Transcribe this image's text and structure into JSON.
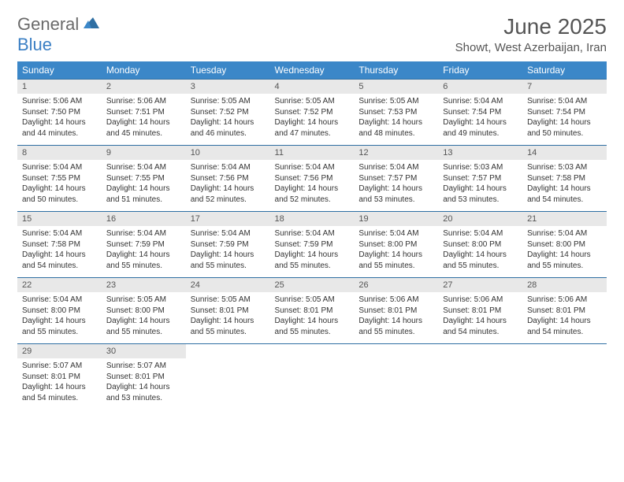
{
  "brand": {
    "part1": "General",
    "part2": "Blue"
  },
  "title": "June 2025",
  "location": "Showt, West Azerbaijan, Iran",
  "colors": {
    "header_bg": "#3b87c8",
    "header_text": "#ffffff",
    "daynum_bg": "#e8e8e8",
    "rule": "#2f6fa3",
    "brand_gray": "#6a6a6a",
    "brand_blue": "#3b7fc4"
  },
  "weekdays": [
    "Sunday",
    "Monday",
    "Tuesday",
    "Wednesday",
    "Thursday",
    "Friday",
    "Saturday"
  ],
  "weeks": [
    [
      {
        "n": "1",
        "sr": "Sunrise: 5:06 AM",
        "ss": "Sunset: 7:50 PM",
        "d1": "Daylight: 14 hours",
        "d2": "and 44 minutes."
      },
      {
        "n": "2",
        "sr": "Sunrise: 5:06 AM",
        "ss": "Sunset: 7:51 PM",
        "d1": "Daylight: 14 hours",
        "d2": "and 45 minutes."
      },
      {
        "n": "3",
        "sr": "Sunrise: 5:05 AM",
        "ss": "Sunset: 7:52 PM",
        "d1": "Daylight: 14 hours",
        "d2": "and 46 minutes."
      },
      {
        "n": "4",
        "sr": "Sunrise: 5:05 AM",
        "ss": "Sunset: 7:52 PM",
        "d1": "Daylight: 14 hours",
        "d2": "and 47 minutes."
      },
      {
        "n": "5",
        "sr": "Sunrise: 5:05 AM",
        "ss": "Sunset: 7:53 PM",
        "d1": "Daylight: 14 hours",
        "d2": "and 48 minutes."
      },
      {
        "n": "6",
        "sr": "Sunrise: 5:04 AM",
        "ss": "Sunset: 7:54 PM",
        "d1": "Daylight: 14 hours",
        "d2": "and 49 minutes."
      },
      {
        "n": "7",
        "sr": "Sunrise: 5:04 AM",
        "ss": "Sunset: 7:54 PM",
        "d1": "Daylight: 14 hours",
        "d2": "and 50 minutes."
      }
    ],
    [
      {
        "n": "8",
        "sr": "Sunrise: 5:04 AM",
        "ss": "Sunset: 7:55 PM",
        "d1": "Daylight: 14 hours",
        "d2": "and 50 minutes."
      },
      {
        "n": "9",
        "sr": "Sunrise: 5:04 AM",
        "ss": "Sunset: 7:55 PM",
        "d1": "Daylight: 14 hours",
        "d2": "and 51 minutes."
      },
      {
        "n": "10",
        "sr": "Sunrise: 5:04 AM",
        "ss": "Sunset: 7:56 PM",
        "d1": "Daylight: 14 hours",
        "d2": "and 52 minutes."
      },
      {
        "n": "11",
        "sr": "Sunrise: 5:04 AM",
        "ss": "Sunset: 7:56 PM",
        "d1": "Daylight: 14 hours",
        "d2": "and 52 minutes."
      },
      {
        "n": "12",
        "sr": "Sunrise: 5:04 AM",
        "ss": "Sunset: 7:57 PM",
        "d1": "Daylight: 14 hours",
        "d2": "and 53 minutes."
      },
      {
        "n": "13",
        "sr": "Sunrise: 5:03 AM",
        "ss": "Sunset: 7:57 PM",
        "d1": "Daylight: 14 hours",
        "d2": "and 53 minutes."
      },
      {
        "n": "14",
        "sr": "Sunrise: 5:03 AM",
        "ss": "Sunset: 7:58 PM",
        "d1": "Daylight: 14 hours",
        "d2": "and 54 minutes."
      }
    ],
    [
      {
        "n": "15",
        "sr": "Sunrise: 5:04 AM",
        "ss": "Sunset: 7:58 PM",
        "d1": "Daylight: 14 hours",
        "d2": "and 54 minutes."
      },
      {
        "n": "16",
        "sr": "Sunrise: 5:04 AM",
        "ss": "Sunset: 7:59 PM",
        "d1": "Daylight: 14 hours",
        "d2": "and 55 minutes."
      },
      {
        "n": "17",
        "sr": "Sunrise: 5:04 AM",
        "ss": "Sunset: 7:59 PM",
        "d1": "Daylight: 14 hours",
        "d2": "and 55 minutes."
      },
      {
        "n": "18",
        "sr": "Sunrise: 5:04 AM",
        "ss": "Sunset: 7:59 PM",
        "d1": "Daylight: 14 hours",
        "d2": "and 55 minutes."
      },
      {
        "n": "19",
        "sr": "Sunrise: 5:04 AM",
        "ss": "Sunset: 8:00 PM",
        "d1": "Daylight: 14 hours",
        "d2": "and 55 minutes."
      },
      {
        "n": "20",
        "sr": "Sunrise: 5:04 AM",
        "ss": "Sunset: 8:00 PM",
        "d1": "Daylight: 14 hours",
        "d2": "and 55 minutes."
      },
      {
        "n": "21",
        "sr": "Sunrise: 5:04 AM",
        "ss": "Sunset: 8:00 PM",
        "d1": "Daylight: 14 hours",
        "d2": "and 55 minutes."
      }
    ],
    [
      {
        "n": "22",
        "sr": "Sunrise: 5:04 AM",
        "ss": "Sunset: 8:00 PM",
        "d1": "Daylight: 14 hours",
        "d2": "and 55 minutes."
      },
      {
        "n": "23",
        "sr": "Sunrise: 5:05 AM",
        "ss": "Sunset: 8:00 PM",
        "d1": "Daylight: 14 hours",
        "d2": "and 55 minutes."
      },
      {
        "n": "24",
        "sr": "Sunrise: 5:05 AM",
        "ss": "Sunset: 8:01 PM",
        "d1": "Daylight: 14 hours",
        "d2": "and 55 minutes."
      },
      {
        "n": "25",
        "sr": "Sunrise: 5:05 AM",
        "ss": "Sunset: 8:01 PM",
        "d1": "Daylight: 14 hours",
        "d2": "and 55 minutes."
      },
      {
        "n": "26",
        "sr": "Sunrise: 5:06 AM",
        "ss": "Sunset: 8:01 PM",
        "d1": "Daylight: 14 hours",
        "d2": "and 55 minutes."
      },
      {
        "n": "27",
        "sr": "Sunrise: 5:06 AM",
        "ss": "Sunset: 8:01 PM",
        "d1": "Daylight: 14 hours",
        "d2": "and 54 minutes."
      },
      {
        "n": "28",
        "sr": "Sunrise: 5:06 AM",
        "ss": "Sunset: 8:01 PM",
        "d1": "Daylight: 14 hours",
        "d2": "and 54 minutes."
      }
    ],
    [
      {
        "n": "29",
        "sr": "Sunrise: 5:07 AM",
        "ss": "Sunset: 8:01 PM",
        "d1": "Daylight: 14 hours",
        "d2": "and 54 minutes."
      },
      {
        "n": "30",
        "sr": "Sunrise: 5:07 AM",
        "ss": "Sunset: 8:01 PM",
        "d1": "Daylight: 14 hours",
        "d2": "and 53 minutes."
      },
      null,
      null,
      null,
      null,
      null
    ]
  ]
}
